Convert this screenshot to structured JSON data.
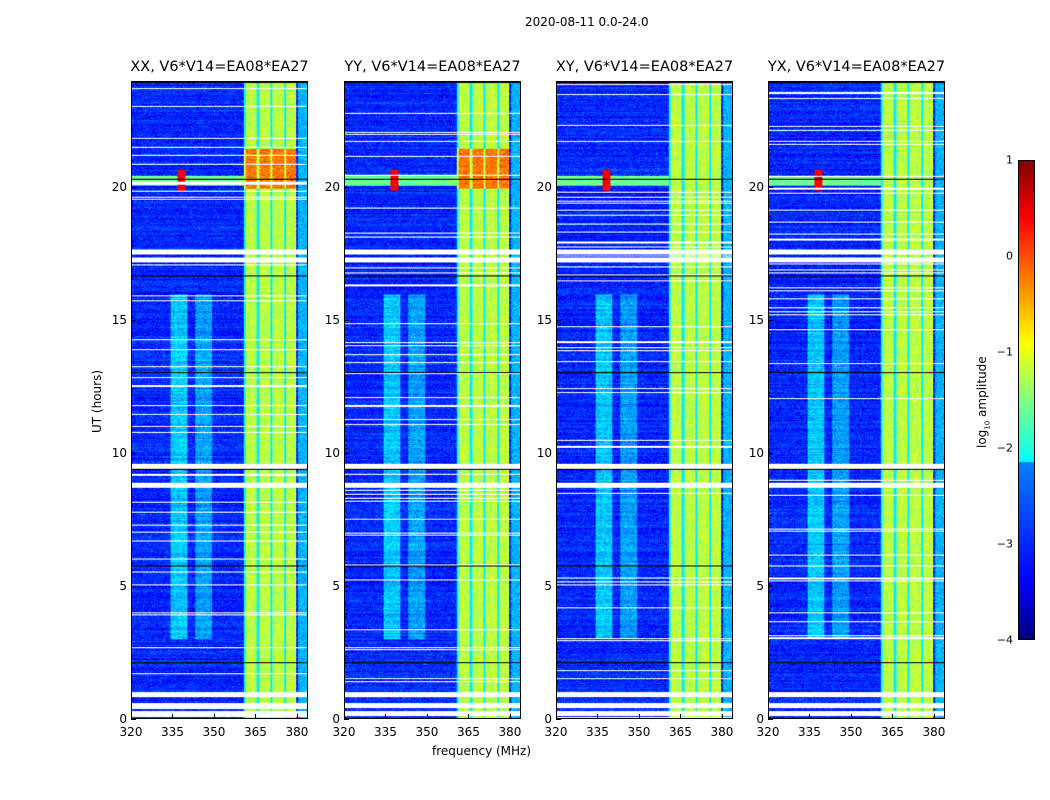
{
  "chart_data": {
    "type": "heatmap",
    "title": "2020-08-11 0.0-24.0",
    "xlabel": "frequency (MHz)",
    "ylabel": "UT (hours)",
    "xlim": [
      320,
      384
    ],
    "ylim": [
      0,
      24
    ],
    "xticks": [
      "320",
      "335",
      "350",
      "365",
      "380"
    ],
    "yticks": [
      "0",
      "5",
      "10",
      "15",
      "20"
    ],
    "panels": [
      {
        "title": "XX, V6*V14=EA08*EA27"
      },
      {
        "title": "YY, V6*V14=EA08*EA27"
      },
      {
        "title": "XY, V6*V14=EA08*EA27"
      },
      {
        "title": "YX, V6*V14=EA08*EA27"
      }
    ],
    "colorbar": {
      "label": "log10 amplitude",
      "label_main": "log",
      "label_sub": "10",
      "label_rest": " amplitude",
      "range": [
        -4,
        1
      ],
      "ticks": [
        "1",
        "0",
        "−1",
        "−2",
        "−3",
        "−4"
      ],
      "colormap": "jet"
    },
    "features": {
      "rfi_band_mhz": [
        360.5,
        380
      ],
      "bright_rows_hours": [
        20.0,
        21.5
      ],
      "flagged_rows_hours": [
        0.2,
        0.5,
        0.9,
        8.8,
        9.5,
        17.3,
        17.6
      ]
    }
  }
}
